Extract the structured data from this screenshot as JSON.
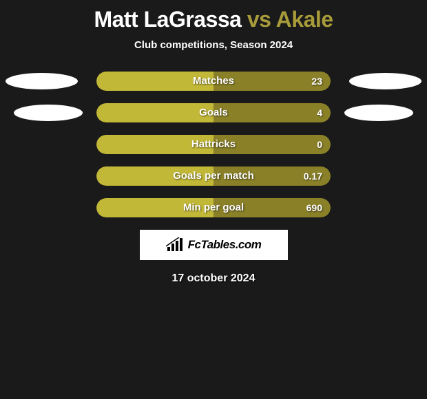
{
  "header": {
    "player_left": "Matt LaGrassa",
    "vs": "vs",
    "player_right": "Akale",
    "subtitle": "Club competitions, Season 2024"
  },
  "colors": {
    "background": "#1a1a1a",
    "bar_left": "#c2b838",
    "bar_right": "#8a8028",
    "text": "#ffffff",
    "accent": "#a89b3a"
  },
  "stats": [
    {
      "label": "Matches",
      "value_right": "23",
      "left_pct": 50,
      "right_pct": 50,
      "left_color": "#c2b838",
      "right_color": "#8a8028"
    },
    {
      "label": "Goals",
      "value_right": "4",
      "left_pct": 50,
      "right_pct": 50,
      "left_color": "#c2b838",
      "right_color": "#8a8028"
    },
    {
      "label": "Hattricks",
      "value_right": "0",
      "left_pct": 50,
      "right_pct": 50,
      "left_color": "#c2b838",
      "right_color": "#8a8028"
    },
    {
      "label": "Goals per match",
      "value_right": "0.17",
      "left_pct": 50,
      "right_pct": 50,
      "left_color": "#c2b838",
      "right_color": "#8a8028"
    },
    {
      "label": "Min per goal",
      "value_right": "690",
      "left_pct": 50,
      "right_pct": 50,
      "left_color": "#c2b838",
      "right_color": "#8a8028"
    }
  ],
  "footer": {
    "brand": "FcTables.com",
    "date": "17 october 2024"
  }
}
